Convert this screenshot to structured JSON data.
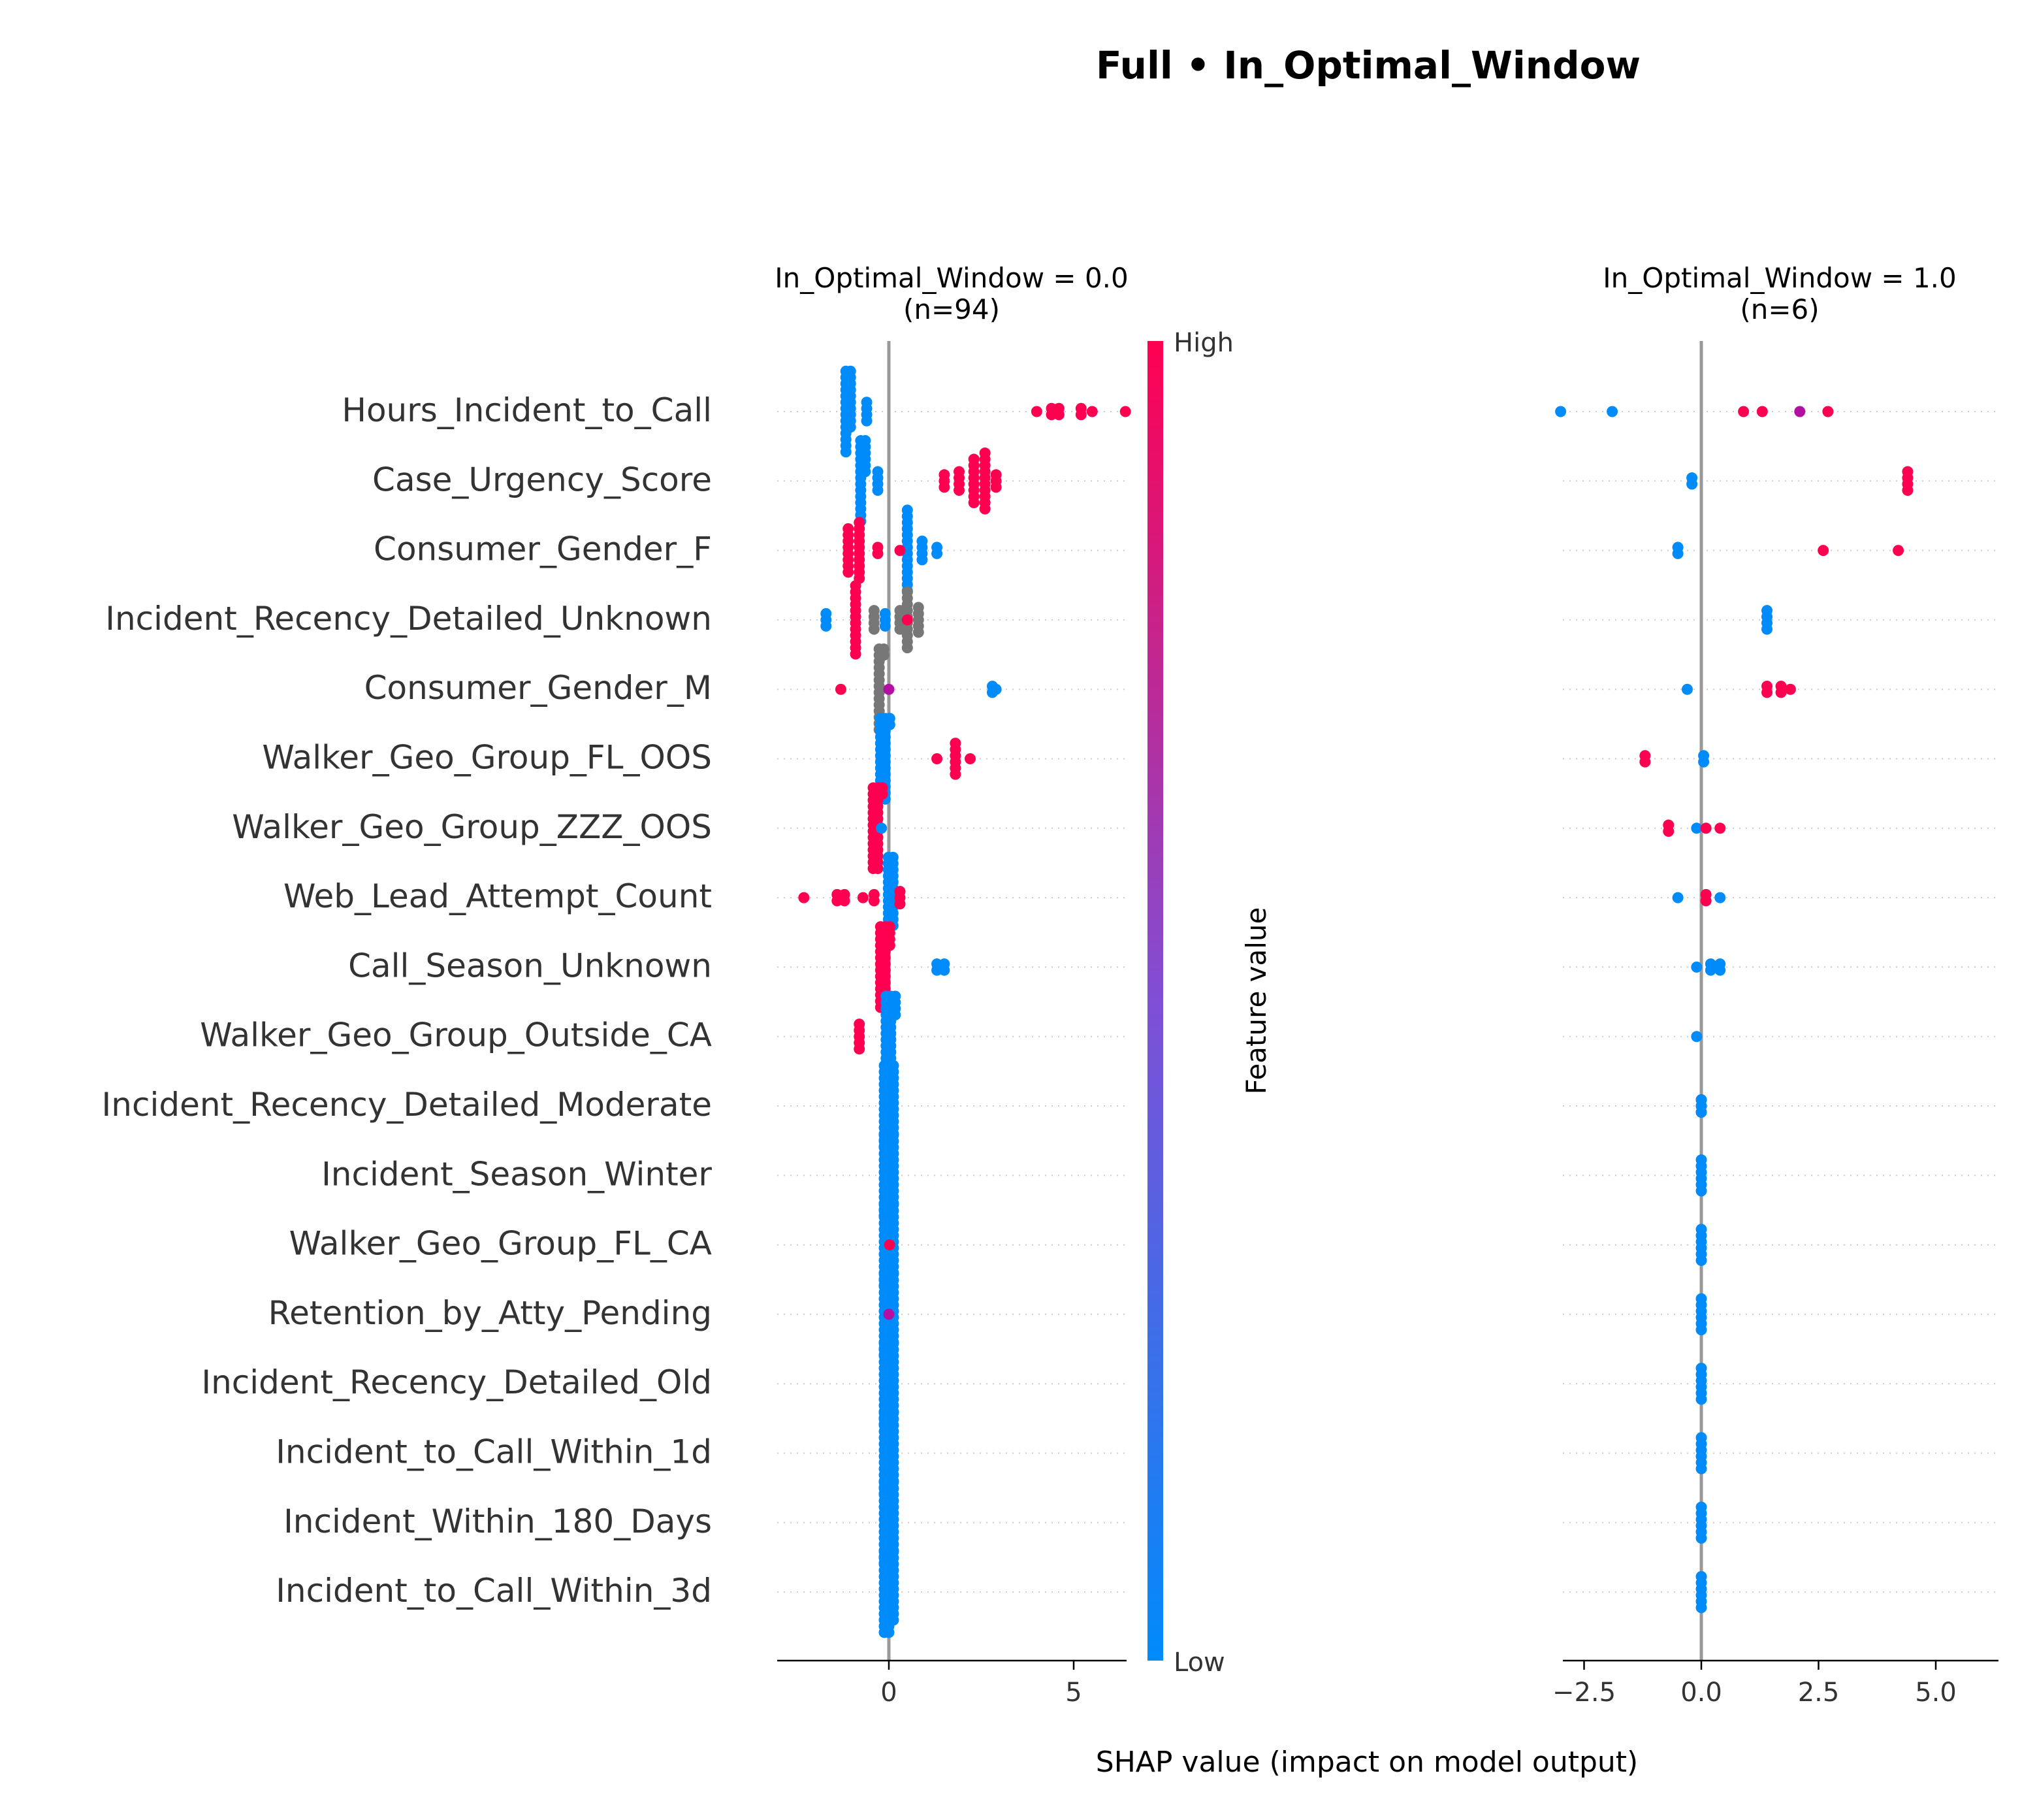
{
  "title": "Full • In_Optimal_Window",
  "colorbar": {
    "high_label": "High",
    "low_label": "Low",
    "axis_label": "Feature value",
    "high_color": "#ff0051",
    "mid_color": "#7f4fd5",
    "low_color": "#008bfb"
  },
  "xlabel": "SHAP value (impact on model output)",
  "features": [
    "Hours_Incident_to_Call",
    "Case_Urgency_Score",
    "Consumer_Gender_F",
    "Incident_Recency_Detailed_Unknown",
    "Consumer_Gender_M",
    "Walker_Geo_Group_FL_OOS",
    "Walker_Geo_Group_ZZZ_OOS",
    "Web_Lead_Attempt_Count",
    "Call_Season_Unknown",
    "Walker_Geo_Group_Outside_CA",
    "Incident_Recency_Detailed_Moderate",
    "Incident_Season_Winter",
    "Walker_Geo_Group_FL_CA",
    "Retention_by_Atty_Pending",
    "Incident_Recency_Detailed_Old",
    "Incident_to_Call_Within_1d",
    "Incident_Within_180_Days",
    "Incident_to_Call_Within_3d"
  ],
  "chart_data": [
    {
      "type": "scatter",
      "title": "In_Optimal_Window = 0.0\n(n=94)",
      "xlabel": "SHAP value (impact on model output)",
      "xlim": [
        -3.0,
        6.5
      ],
      "xticks": [
        0,
        5
      ],
      "xtick_labels": [
        "0",
        "5"
      ],
      "series": [
        {
          "feature": "Hours_Incident_to_Call",
          "points": [
            {
              "v": -1.1,
              "n": 24,
              "c": "low"
            },
            {
              "v": -0.6,
              "n": 4,
              "c": "low"
            },
            {
              "v": 4.0,
              "n": 1,
              "c": "high"
            },
            {
              "v": 4.4,
              "n": 2,
              "c": "high"
            },
            {
              "v": 4.6,
              "n": 2,
              "c": "high"
            },
            {
              "v": 5.2,
              "n": 2,
              "c": "high"
            },
            {
              "v": 5.5,
              "n": 1,
              "c": "high"
            },
            {
              "v": 6.4,
              "n": 1,
              "c": "high"
            }
          ]
        },
        {
          "feature": "Case_Urgency_Score",
          "points": [
            {
              "v": -0.7,
              "n": 20,
              "c": "low"
            },
            {
              "v": -0.3,
              "n": 4,
              "c": "low"
            },
            {
              "v": 1.5,
              "n": 3,
              "c": "high"
            },
            {
              "v": 1.9,
              "n": 4,
              "c": "high"
            },
            {
              "v": 2.3,
              "n": 8,
              "c": "high"
            },
            {
              "v": 2.6,
              "n": 10,
              "c": "high"
            },
            {
              "v": 2.9,
              "n": 3,
              "c": "high"
            }
          ]
        },
        {
          "feature": "Consumer_Gender_F",
          "points": [
            {
              "v": -1.1,
              "n": 8,
              "c": "high"
            },
            {
              "v": -0.8,
              "n": 10,
              "c": "high"
            },
            {
              "v": -0.3,
              "n": 2,
              "c": "high"
            },
            {
              "v": 0.5,
              "n": 14,
              "c": "low"
            },
            {
              "v": 0.9,
              "n": 4,
              "c": "low"
            },
            {
              "v": 1.3,
              "n": 2,
              "c": "low"
            },
            {
              "v": 0.3,
              "n": 1,
              "c": "high"
            }
          ]
        },
        {
          "feature": "Incident_Recency_Detailed_Unknown",
          "points": [
            {
              "v": -1.7,
              "n": 3,
              "c": "low"
            },
            {
              "v": -0.9,
              "n": 12,
              "c": "high"
            },
            {
              "v": -0.4,
              "n": 4,
              "c": "nan"
            },
            {
              "v": -0.1,
              "n": 3,
              "c": "low"
            },
            {
              "v": 0.3,
              "n": 4,
              "c": "nan"
            },
            {
              "v": 0.5,
              "n": 10,
              "c": "nan"
            },
            {
              "v": 0.8,
              "n": 5,
              "c": "nan"
            },
            {
              "v": 0.5,
              "n": 1,
              "c": "high"
            }
          ]
        },
        {
          "feature": "Consumer_Gender_M",
          "points": [
            {
              "v": -1.3,
              "n": 1,
              "c": "high"
            },
            {
              "v": -0.2,
              "n": 16,
              "c": "nan"
            },
            {
              "v": 0.0,
              "n": 1,
              "c": "mid"
            },
            {
              "v": 2.8,
              "n": 2,
              "c": "low"
            },
            {
              "v": 2.9,
              "n": 1,
              "c": "low"
            }
          ]
        },
        {
          "feature": "Walker_Geo_Group_FL_OOS",
          "points": [
            {
              "v": -0.1,
              "n": 30,
              "c": "low"
            },
            {
              "v": 1.3,
              "n": 1,
              "c": "high"
            },
            {
              "v": 1.8,
              "n": 6,
              "c": "high"
            },
            {
              "v": 2.2,
              "n": 1,
              "c": "high"
            }
          ]
        },
        {
          "feature": "Walker_Geo_Group_ZZZ_OOS",
          "points": [
            {
              "v": -0.3,
              "n": 30,
              "c": "high"
            },
            {
              "v": -0.2,
              "n": 1,
              "c": "low"
            }
          ]
        },
        {
          "feature": "Web_Lead_Attempt_Count",
          "points": [
            {
              "v": -2.3,
              "n": 1,
              "c": "high"
            },
            {
              "v": -1.4,
              "n": 2,
              "c": "high"
            },
            {
              "v": -1.2,
              "n": 2,
              "c": "high"
            },
            {
              "v": -0.7,
              "n": 1,
              "c": "high"
            },
            {
              "v": -0.4,
              "n": 2,
              "c": "high"
            },
            {
              "v": 0.05,
              "n": 26,
              "c": "low"
            },
            {
              "v": 0.3,
              "n": 3,
              "c": "high"
            }
          ]
        },
        {
          "feature": "Call_Season_Unknown",
          "points": [
            {
              "v": -0.1,
              "n": 32,
              "c": "high"
            },
            {
              "v": 1.3,
              "n": 2,
              "c": "low"
            },
            {
              "v": 1.5,
              "n": 2,
              "c": "low"
            }
          ]
        },
        {
          "feature": "Walker_Geo_Group_Outside_CA",
          "points": [
            {
              "v": -0.8,
              "n": 5,
              "c": "high"
            },
            {
              "v": 0.05,
              "n": 32,
              "c": "low"
            }
          ]
        },
        {
          "feature": "Incident_Recency_Detailed_Moderate",
          "points": [
            {
              "v": 0.0,
              "n": 40,
              "c": "low"
            }
          ]
        },
        {
          "feature": "Incident_Season_Winter",
          "points": [
            {
              "v": 0.0,
              "n": 40,
              "c": "low"
            }
          ]
        },
        {
          "feature": "Walker_Geo_Group_FL_CA",
          "points": [
            {
              "v": 0.0,
              "n": 40,
              "c": "low"
            },
            {
              "v": 0.02,
              "n": 1,
              "c": "high"
            }
          ]
        },
        {
          "feature": "Retention_by_Atty_Pending",
          "points": [
            {
              "v": 0.0,
              "n": 40,
              "c": "low"
            },
            {
              "v": 0.0,
              "n": 1,
              "c": "mid"
            }
          ]
        },
        {
          "feature": "Incident_Recency_Detailed_Old",
          "points": [
            {
              "v": 0.0,
              "n": 40,
              "c": "low"
            }
          ]
        },
        {
          "feature": "Incident_to_Call_Within_1d",
          "points": [
            {
              "v": 0.0,
              "n": 40,
              "c": "low"
            }
          ]
        },
        {
          "feature": "Incident_Within_180_Days",
          "points": [
            {
              "v": 0.0,
              "n": 40,
              "c": "low"
            }
          ]
        },
        {
          "feature": "Incident_to_Call_Within_3d",
          "points": [
            {
              "v": 0.0,
              "n": 40,
              "c": "low"
            }
          ]
        }
      ]
    },
    {
      "type": "scatter",
      "title": "In_Optimal_Window = 1.0\n(n=6)",
      "xlabel": "SHAP value (impact on model output)",
      "xlim": [
        -3.0,
        6.3
      ],
      "xticks": [
        -2.5,
        0.0,
        2.5,
        5.0
      ],
      "xtick_labels": [
        "−2.5",
        "0.0",
        "2.5",
        "5.0"
      ],
      "series": [
        {
          "feature": "Hours_Incident_to_Call",
          "points": [
            {
              "v": -3.0,
              "n": 1,
              "c": "low"
            },
            {
              "v": -1.9,
              "n": 1,
              "c": "low"
            },
            {
              "v": 0.9,
              "n": 1,
              "c": "high"
            },
            {
              "v": 1.3,
              "n": 1,
              "c": "high"
            },
            {
              "v": 2.1,
              "n": 1,
              "c": "mid"
            },
            {
              "v": 2.7,
              "n": 1,
              "c": "high"
            }
          ]
        },
        {
          "feature": "Case_Urgency_Score",
          "points": [
            {
              "v": -0.2,
              "n": 2,
              "c": "low"
            },
            {
              "v": 4.4,
              "n": 4,
              "c": "high"
            }
          ]
        },
        {
          "feature": "Consumer_Gender_F",
          "points": [
            {
              "v": -0.5,
              "n": 2,
              "c": "low"
            },
            {
              "v": 2.6,
              "n": 1,
              "c": "high"
            },
            {
              "v": 4.2,
              "n": 1,
              "c": "high"
            }
          ]
        },
        {
          "feature": "Incident_Recency_Detailed_Unknown",
          "points": [
            {
              "v": 1.4,
              "n": 4,
              "c": "low"
            }
          ]
        },
        {
          "feature": "Consumer_Gender_M",
          "points": [
            {
              "v": -0.3,
              "n": 1,
              "c": "low"
            },
            {
              "v": 1.4,
              "n": 2,
              "c": "high"
            },
            {
              "v": 1.7,
              "n": 2,
              "c": "high"
            },
            {
              "v": 1.9,
              "n": 1,
              "c": "high"
            }
          ]
        },
        {
          "feature": "Walker_Geo_Group_FL_OOS",
          "points": [
            {
              "v": -1.2,
              "n": 2,
              "c": "high"
            },
            {
              "v": 0.05,
              "n": 2,
              "c": "low"
            }
          ]
        },
        {
          "feature": "Walker_Geo_Group_ZZZ_OOS",
          "points": [
            {
              "v": -0.7,
              "n": 2,
              "c": "high"
            },
            {
              "v": -0.1,
              "n": 1,
              "c": "low"
            },
            {
              "v": 0.1,
              "n": 1,
              "c": "high"
            },
            {
              "v": 0.4,
              "n": 1,
              "c": "high"
            }
          ]
        },
        {
          "feature": "Web_Lead_Attempt_Count",
          "points": [
            {
              "v": -0.5,
              "n": 1,
              "c": "low"
            },
            {
              "v": 0.1,
              "n": 2,
              "c": "high"
            },
            {
              "v": 0.4,
              "n": 1,
              "c": "low"
            }
          ]
        },
        {
          "feature": "Call_Season_Unknown",
          "points": [
            {
              "v": -0.1,
              "n": 1,
              "c": "low"
            },
            {
              "v": 0.2,
              "n": 2,
              "c": "low"
            },
            {
              "v": 0.4,
              "n": 2,
              "c": "low"
            }
          ]
        },
        {
          "feature": "Walker_Geo_Group_Outside_CA",
          "points": [
            {
              "v": -0.1,
              "n": 1,
              "c": "low"
            }
          ]
        },
        {
          "feature": "Incident_Recency_Detailed_Moderate",
          "points": [
            {
              "v": 0.0,
              "n": 3,
              "c": "high"
            },
            {
              "v": 0.0,
              "n": 3,
              "c": "low"
            }
          ]
        },
        {
          "feature": "Incident_Season_Winter",
          "points": [
            {
              "v": 0.0,
              "n": 6,
              "c": "low"
            }
          ]
        },
        {
          "feature": "Walker_Geo_Group_FL_CA",
          "points": [
            {
              "v": 0.0,
              "n": 6,
              "c": "low"
            }
          ]
        },
        {
          "feature": "Retention_by_Atty_Pending",
          "points": [
            {
              "v": 0.0,
              "n": 6,
              "c": "low"
            }
          ]
        },
        {
          "feature": "Incident_Recency_Detailed_Old",
          "points": [
            {
              "v": 0.0,
              "n": 6,
              "c": "low"
            }
          ]
        },
        {
          "feature": "Incident_to_Call_Within_1d",
          "points": [
            {
              "v": 0.0,
              "n": 6,
              "c": "low"
            }
          ]
        },
        {
          "feature": "Incident_Within_180_Days",
          "points": [
            {
              "v": 0.0,
              "n": 6,
              "c": "low"
            }
          ]
        },
        {
          "feature": "Incident_to_Call_Within_3d",
          "points": [
            {
              "v": 0.0,
              "n": 6,
              "c": "low"
            }
          ]
        }
      ]
    }
  ]
}
